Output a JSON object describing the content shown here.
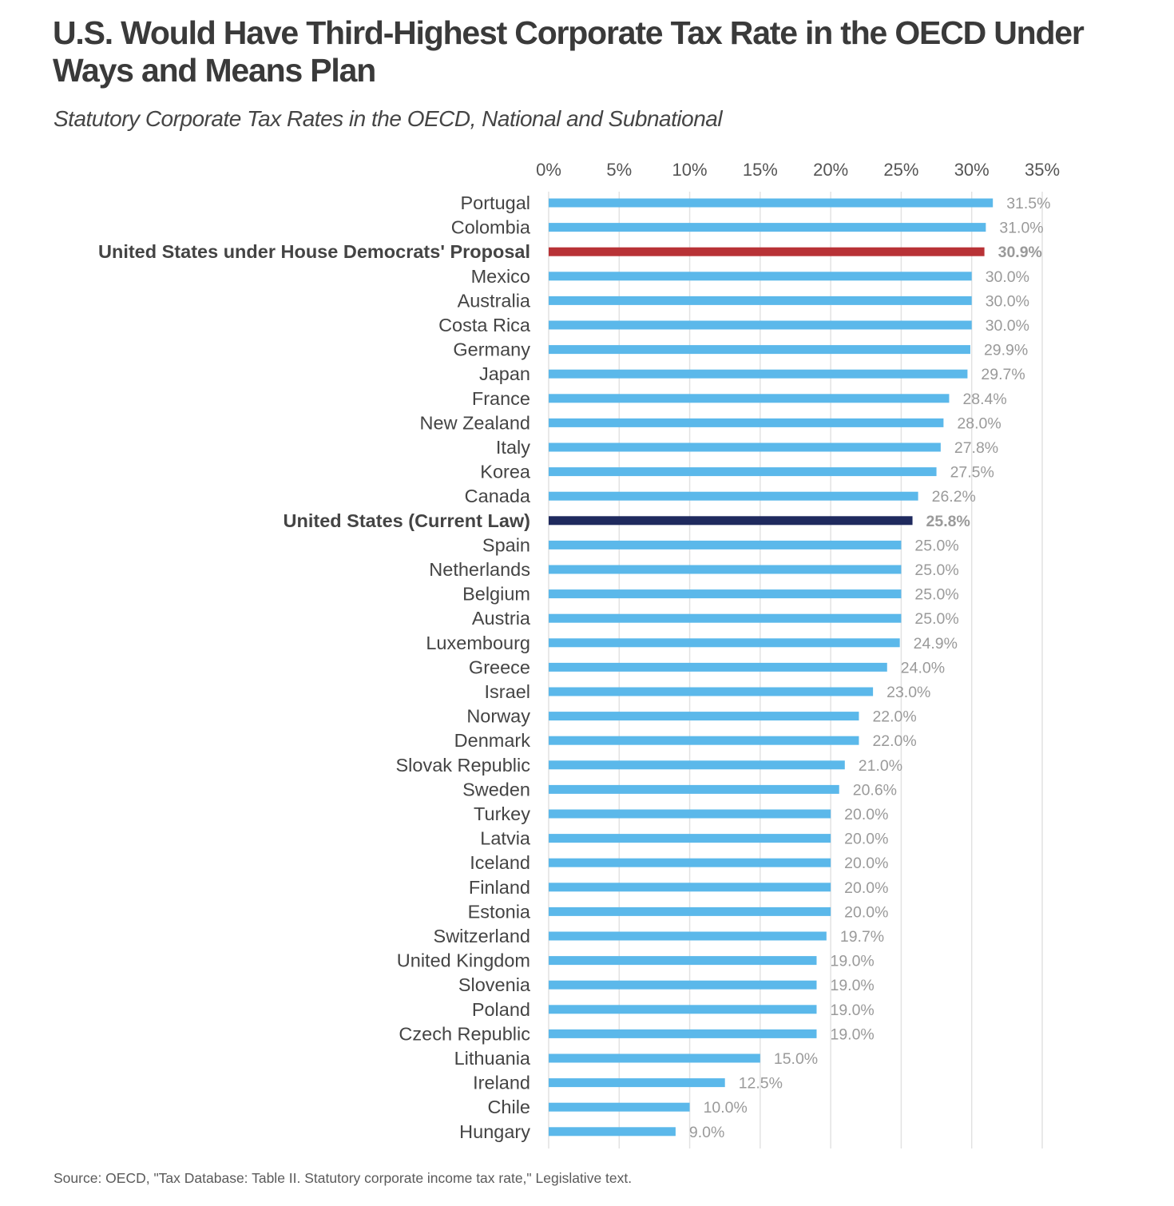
{
  "header": {
    "title": "U.S. Would Have Third-Highest Corporate Tax Rate in the OECD Under Ways and Means Plan",
    "subtitle": "Statutory Corporate Tax Rates in the OECD, National and Subnational"
  },
  "footer": {
    "source": "Source: OECD, \"Tax Database: Table II. Statutory corporate income tax rate,\" Legislative text."
  },
  "colors": {
    "default_bar": "#5bb8ea",
    "proposal_highlight": "#b83236",
    "current_law_highlight": "#1f2a5e",
    "value_label": "#9a9a9a",
    "category_label": "#444444"
  },
  "chart_data": {
    "type": "bar",
    "orientation": "horizontal",
    "title": "U.S. Would Have Third-Highest Corporate Tax Rate in the OECD Under Ways and Means Plan",
    "subtitle": "Statutory Corporate Tax Rates in the OECD, National and Subnational",
    "xlabel": "",
    "ylabel": "",
    "xlim": [
      0,
      35
    ],
    "x_ticks": [
      0,
      5,
      10,
      15,
      20,
      25,
      30,
      35
    ],
    "x_tick_labels": [
      "0%",
      "5%",
      "10%",
      "15%",
      "20%",
      "25%",
      "30%",
      "35%"
    ],
    "x_axis_position": "top",
    "grid": true,
    "legend": "none",
    "categories": [
      "Portugal",
      "Colombia",
      "United States under House Democrats' Proposal",
      "Mexico",
      "Australia",
      "Costa Rica",
      "Germany",
      "Japan",
      "France",
      "New Zealand",
      "Italy",
      "Korea",
      "Canada",
      "United States (Current Law)",
      "Spain",
      "Netherlands",
      "Belgium",
      "Austria",
      "Luxembourg",
      "Greece",
      "Israel",
      "Norway",
      "Denmark",
      "Slovak Republic",
      "Sweden",
      "Turkey",
      "Latvia",
      "Iceland",
      "Finland",
      "Estonia",
      "Switzerland",
      "United Kingdom",
      "Slovenia",
      "Poland",
      "Czech Republic",
      "Lithuania",
      "Ireland",
      "Chile",
      "Hungary"
    ],
    "values": [
      31.5,
      31.0,
      30.9,
      30.0,
      30.0,
      30.0,
      29.9,
      29.7,
      28.4,
      28.0,
      27.8,
      27.5,
      26.2,
      25.8,
      25.0,
      25.0,
      25.0,
      25.0,
      24.9,
      24.0,
      23.0,
      22.0,
      22.0,
      21.0,
      20.6,
      20.0,
      20.0,
      20.0,
      20.0,
      20.0,
      19.7,
      19.0,
      19.0,
      19.0,
      19.0,
      15.0,
      12.5,
      10.0,
      9.0
    ],
    "value_labels": [
      "31.5%",
      "31.0%",
      "30.9%",
      "30.0%",
      "30.0%",
      "30.0%",
      "29.9%",
      "29.7%",
      "28.4%",
      "28.0%",
      "27.8%",
      "27.5%",
      "26.2%",
      "25.8%",
      "25.0%",
      "25.0%",
      "25.0%",
      "25.0%",
      "24.9%",
      "24.0%",
      "23.0%",
      "22.0%",
      "22.0%",
      "21.0%",
      "20.6%",
      "20.0%",
      "20.0%",
      "20.0%",
      "20.0%",
      "20.0%",
      "19.7%",
      "19.0%",
      "19.0%",
      "19.0%",
      "19.0%",
      "15.0%",
      "12.5%",
      "10.0%",
      "9.0%"
    ],
    "highlights": {
      "United States under House Democrats' Proposal": "proposal_highlight",
      "United States (Current Law)": "current_law_highlight"
    }
  }
}
